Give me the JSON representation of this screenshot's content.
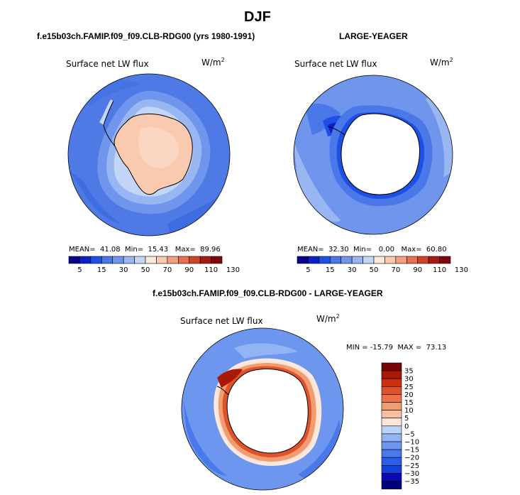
{
  "season": "DJF",
  "panels": [
    {
      "id": "p1",
      "header": "f.e15b03ch.FAMIP.f09_f09.CLB-RDG00 (yrs 1980-1991)",
      "label": "Surface net LW flux",
      "units": "W/m",
      "units_sup": "2",
      "stats": {
        "mean_label": "MEAN=",
        "mean": "41.08",
        "min_label": "Min=",
        "min": "15.43",
        "max_label": "Max=",
        "max": "89.96"
      }
    },
    {
      "id": "p2",
      "header": "LARGE-YEAGER",
      "label": "Surface net LW flux",
      "units": "W/m",
      "units_sup": "2",
      "stats": {
        "mean_label": "MEAN=",
        "mean": "32.30",
        "min_label": "Min=",
        "min": "0.00",
        "max_label": "Max=",
        "max": "60.80"
      }
    },
    {
      "id": "p3",
      "header": "f.e15b03ch.FAMIP.f09_f09.CLB-RDG00 - LARGE-YEAGER",
      "label": "Surface net LW flux",
      "units": "W/m",
      "units_sup": "2",
      "minmax": "MIN = -15.79  MAX =  73.13"
    }
  ],
  "colors": {
    "abs_scale": [
      "#08008a",
      "#0a20c8",
      "#1f50e6",
      "#4a78e8",
      "#6f96ec",
      "#98b6f2",
      "#c3d6f8",
      "#fde9dc",
      "#f9c9b0",
      "#f2a07f",
      "#e7714f",
      "#d4412a",
      "#a81a10",
      "#7d0606"
    ],
    "diff_scale": [
      "#00007e",
      "#0a0ab4",
      "#1640dc",
      "#2d5ee8",
      "#4a7aea",
      "#6d97ee",
      "#93b4f2",
      "#bdd2f8",
      "#fde7da",
      "#f8c2a2",
      "#f29c72",
      "#ea7448",
      "#e0522a",
      "#c8300e",
      "#a81a06",
      "#780402"
    ],
    "land": "#ffffff",
    "coast": "#000000"
  },
  "chart_data": [
    {
      "type": "heatmap",
      "title": "Surface net LW flux",
      "subtitle": "f.e15b03ch.FAMIP.f09_f09.CLB-RDG00 (yrs 1980-1991)",
      "season": "DJF",
      "units": "W/m2",
      "levels": [
        5,
        10,
        15,
        20,
        30,
        40,
        50,
        60,
        70,
        80,
        90,
        100,
        110,
        120,
        130
      ],
      "tick_labels": [
        "5",
        "15",
        "30",
        "50",
        "70",
        "90",
        "110",
        "130"
      ],
      "mean": 41.08,
      "min": 15.43,
      "max": 89.96
    },
    {
      "type": "heatmap",
      "title": "Surface net LW flux",
      "subtitle": "LARGE-YEAGER",
      "season": "DJF",
      "units": "W/m2",
      "levels": [
        5,
        10,
        15,
        20,
        30,
        40,
        50,
        60,
        70,
        80,
        90,
        100,
        110,
        120,
        130
      ],
      "tick_labels": [
        "5",
        "15",
        "30",
        "50",
        "70",
        "90",
        "110",
        "130"
      ],
      "mean": 32.3,
      "min": 0.0,
      "max": 60.8
    },
    {
      "type": "heatmap",
      "title": "Surface net LW flux",
      "subtitle": "f.e15b03ch.FAMIP.f09_f09.CLB-RDG00 - LARGE-YEAGER",
      "season": "DJF",
      "units": "W/m2",
      "levels": [
        -35,
        -30,
        -25,
        -20,
        -15,
        -10,
        -5,
        0,
        5,
        10,
        15,
        20,
        25,
        30,
        35
      ],
      "tick_labels": [
        "35",
        "30",
        "25",
        "20",
        "15",
        "10",
        "5",
        "0",
        "−5",
        "−10",
        "−15",
        "−20",
        "−25",
        "−30",
        "−35"
      ],
      "min": -15.79,
      "max": 73.13
    }
  ]
}
